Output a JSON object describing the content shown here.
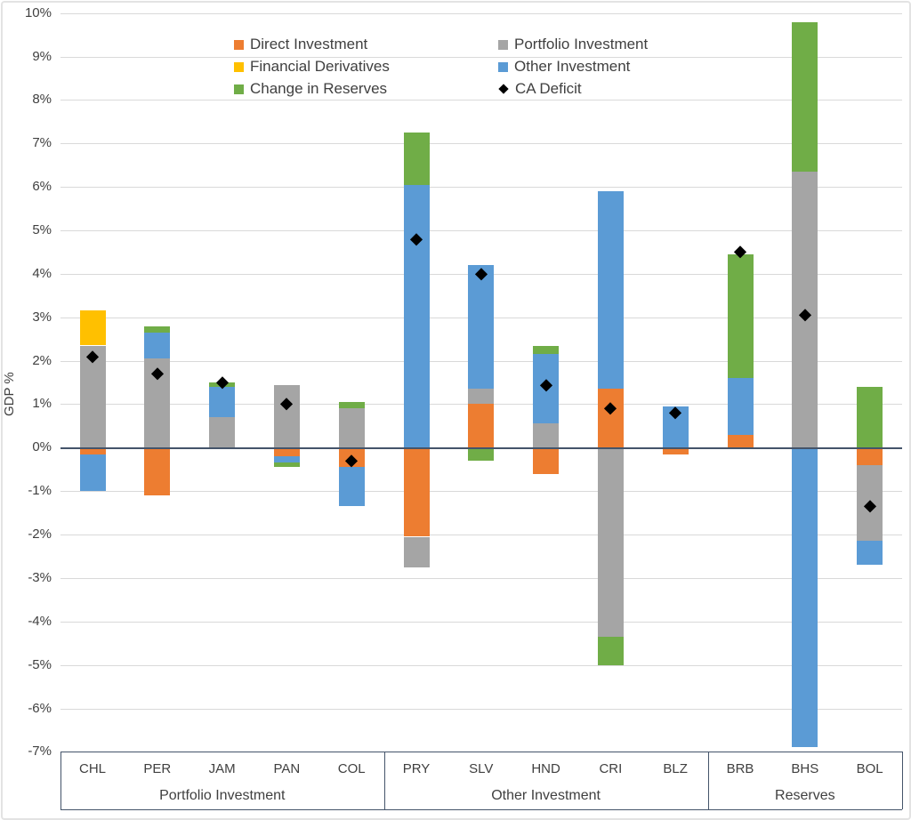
{
  "chart_data": {
    "type": "bar",
    "stacked": true,
    "title": "",
    "ylabel": "GDP %",
    "ylim": [
      -7,
      10
    ],
    "ytick_step": 1,
    "ytick_labels": [
      "10%",
      "9%",
      "8%",
      "7%",
      "6%",
      "5%",
      "4%",
      "3%",
      "2%",
      "1%",
      "0%",
      "-1%",
      "-2%",
      "-3%",
      "-4%",
      "-5%",
      "-6%",
      "-7%"
    ],
    "grid": "horizontal",
    "legend_position": "top-inside-two-columns",
    "units": "percent of GDP",
    "categories": [
      "CHL",
      "PER",
      "JAM",
      "PAN",
      "COL",
      "PRY",
      "SLV",
      "HND",
      "CRI",
      "BLZ",
      "BRB",
      "BHS",
      "BOL"
    ],
    "groups": [
      {
        "label": "Portfolio Investment",
        "categories": [
          "CHL",
          "PER",
          "JAM",
          "PAN",
          "COL"
        ]
      },
      {
        "label": "Other Investment",
        "categories": [
          "PRY",
          "SLV",
          "HND",
          "CRI",
          "BLZ"
        ]
      },
      {
        "label": "Reserves",
        "categories": [
          "BRB",
          "BHS",
          "BOL"
        ]
      }
    ],
    "series": [
      {
        "name": "Direct Investment",
        "color": "#ED7D31",
        "values": [
          -0.15,
          -1.1,
          0.0,
          -0.2,
          -0.45,
          -2.05,
          1.0,
          -0.6,
          1.35,
          -0.15,
          0.3,
          0.0,
          -0.4
        ]
      },
      {
        "name": "Portfolio Investment",
        "color": "#A5A5A5",
        "values": [
          2.35,
          2.05,
          0.7,
          1.45,
          0.9,
          -0.7,
          0.35,
          0.55,
          -4.35,
          0.0,
          0.0,
          6.35,
          -1.75
        ]
      },
      {
        "name": "Financial Derivatives",
        "color": "#FFC000",
        "values": [
          0.8,
          0.0,
          0.0,
          0.0,
          0.0,
          0.0,
          0.0,
          0.0,
          0.0,
          0.0,
          0.0,
          0.0,
          0.0
        ]
      },
      {
        "name": "Other Investment",
        "color": "#5B9BD5",
        "values": [
          -0.85,
          0.6,
          0.7,
          -0.15,
          -0.9,
          6.05,
          2.85,
          1.6,
          4.55,
          0.95,
          1.3,
          -6.9,
          -0.55
        ]
      },
      {
        "name": "Change in Reserves",
        "color": "#70AD47",
        "values": [
          0.0,
          0.15,
          0.1,
          -0.1,
          0.15,
          1.2,
          -0.3,
          0.2,
          -0.65,
          0.0,
          2.85,
          3.45,
          1.4
        ]
      }
    ],
    "markers": {
      "name": "CA Deficit",
      "color": "#000000",
      "shape": "diamond",
      "values": [
        2.1,
        1.7,
        1.5,
        1.0,
        -0.3,
        4.8,
        4.0,
        1.45,
        0.9,
        0.8,
        4.5,
        3.05,
        -1.35
      ]
    },
    "grid_color": "#D9D9D9",
    "axis_color": "#44546A",
    "text_color": "#404040"
  }
}
